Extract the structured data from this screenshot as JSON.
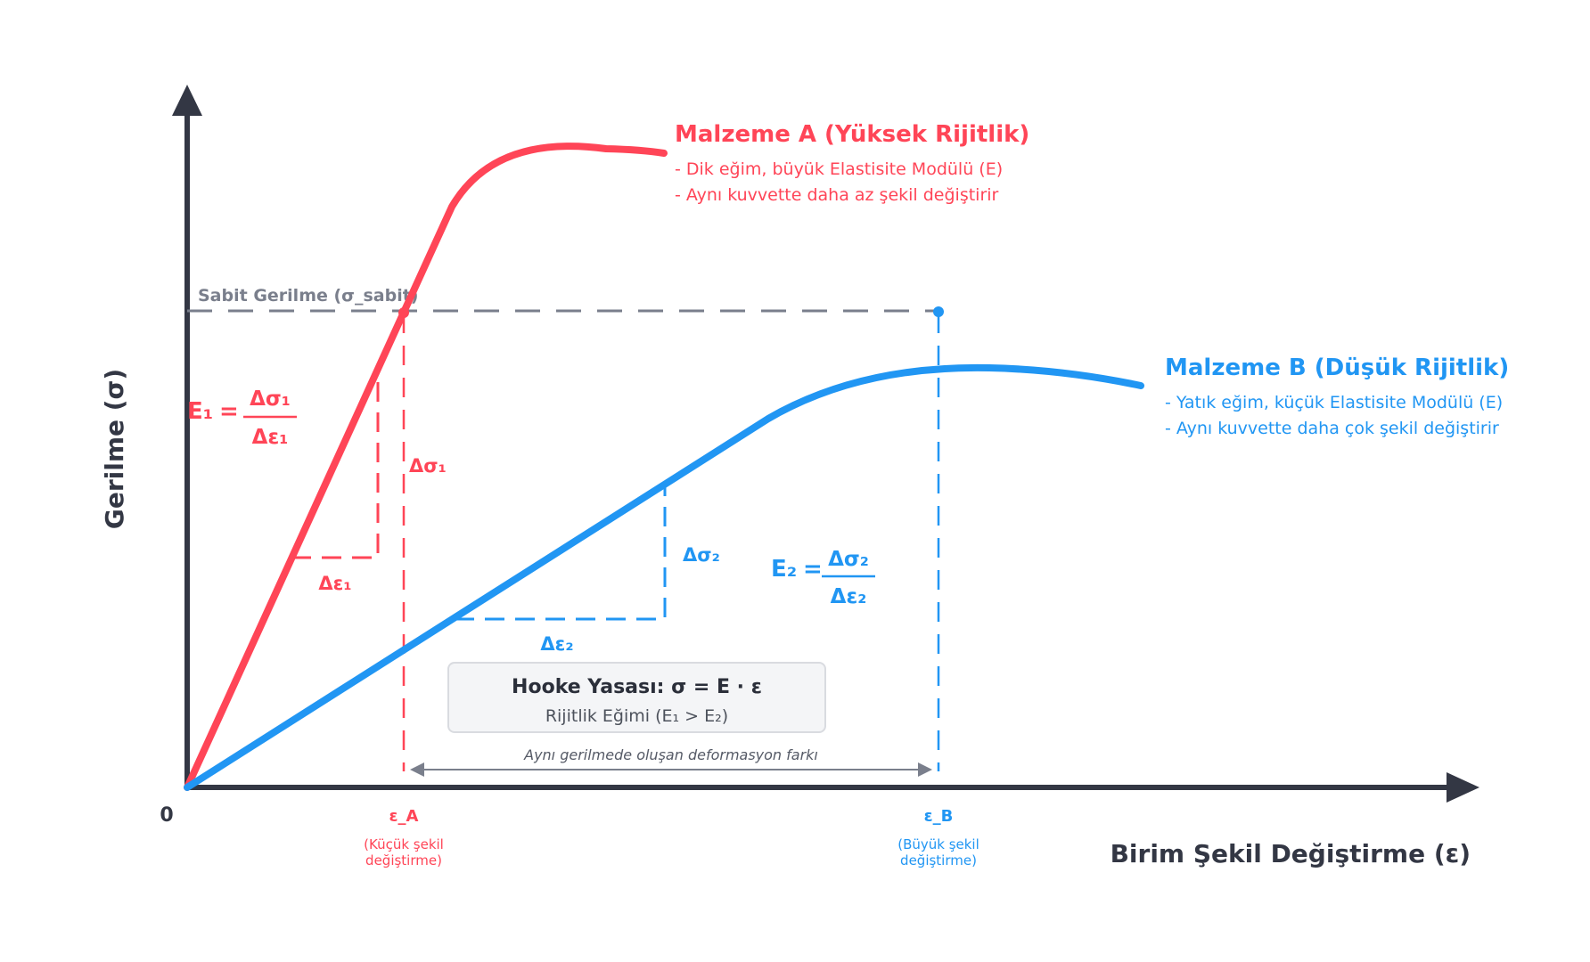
{
  "colors": {
    "axis": "#333744",
    "material_a": "#ff4557",
    "material_b": "#2196f3",
    "guide": "#7a7f8c",
    "note": "#555a66"
  },
  "axes": {
    "y_label": "Gerilme (σ)",
    "x_label": "Birim Şekil Değiştirme (ε)",
    "origin": "0"
  },
  "constant_stress_label": "Sabit Gerilme (σ_sabit)",
  "material_a": {
    "title": "Malzeme A (Yüksek Rijitlik)",
    "line1": "- Dik eğim, büyük Elastisite Modülü (E)",
    "line2": "- Aynı kuvvette daha az şekil değiştirir",
    "strain_tick": "ε_A",
    "strain_note1": "(Küçük şekil",
    "strain_note2": "değiştirme)",
    "formula_lhs": "E₁",
    "formula_eq": "=",
    "formula_num": "Δσ₁",
    "formula_den": "Δε₁",
    "delta_sigma": "Δσ₁",
    "delta_eps": "Δε₁"
  },
  "material_b": {
    "title": "Malzeme B (Düşük Rijitlik)",
    "line1": "- Yatık eğim, küçük Elastisite Modülü (E)",
    "line2": "- Aynı kuvvette daha çok şekil değiştirir",
    "strain_tick": "ε_B",
    "strain_note1": "(Büyük şekil",
    "strain_note2": "değiştirme)",
    "formula_lhs": "E₂",
    "formula_eq": "=",
    "formula_num": "Δσ₂",
    "formula_den": "Δε₂",
    "delta_sigma": "Δσ₂",
    "delta_eps": "Δε₂"
  },
  "hooke": {
    "title": "Hooke Yasası: σ = E · ε",
    "subtitle": "Rijitlik Eğimi (E₁ > E₂)"
  },
  "deformation_note": "Aynı gerilmede oluşan deformasyon farkı"
}
